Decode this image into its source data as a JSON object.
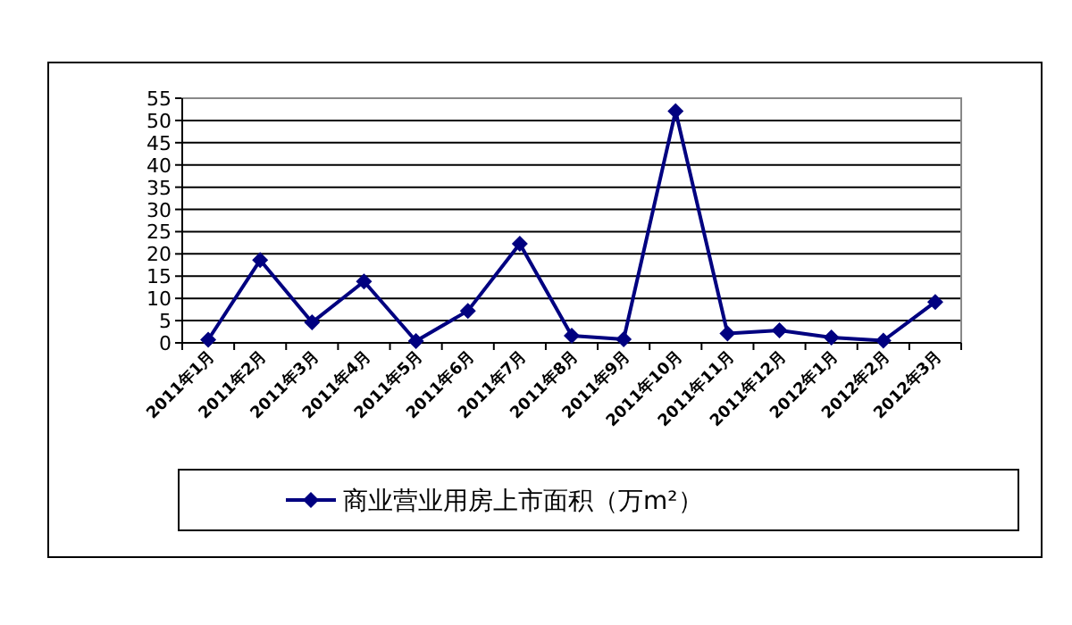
{
  "chart_data": {
    "type": "line",
    "categories": [
      "2011年1月",
      "2011年2月",
      "2011年3月",
      "2011年4月",
      "2011年5月",
      "2011年6月",
      "2011年7月",
      "2011年8月",
      "2011年9月",
      "2011年10月",
      "2011年11月",
      "2011年12月",
      "2012年1月",
      "2012年2月",
      "2012年3月"
    ],
    "series": [
      {
        "name": "商业营业用房上市面积（万m²）",
        "color": "#000080",
        "values": [
          0.7,
          18.6,
          4.6,
          13.8,
          0.4,
          7.2,
          22.3,
          1.6,
          0.8,
          52.1,
          2.1,
          2.8,
          1.2,
          0.5,
          9.2
        ]
      }
    ],
    "ylim": [
      0,
      55
    ],
    "yticks": [
      0,
      5,
      10,
      15,
      20,
      25,
      30,
      35,
      40,
      45,
      50,
      55
    ],
    "grid": "y",
    "legend": "bottom",
    "marker": "diamond",
    "line_style": "solid"
  }
}
